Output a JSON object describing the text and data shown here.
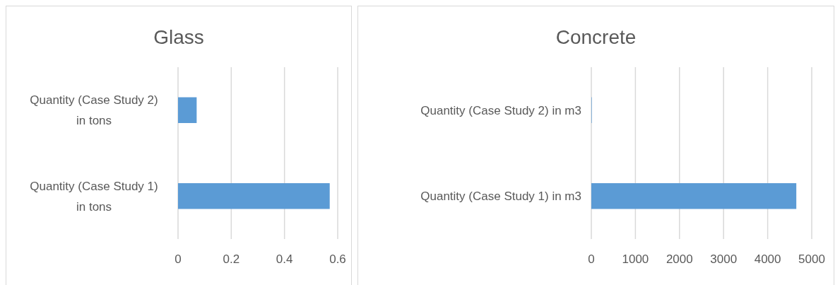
{
  "chart_data": [
    {
      "type": "bar",
      "orientation": "horizontal",
      "title": "Glass",
      "categories": [
        "Quantity (Case Study 2) in tons",
        "Quantity (Case Study 1) in tons"
      ],
      "values": [
        0.07,
        0.57
      ],
      "color": "#5b9bd5",
      "xlim": [
        0,
        0.6
      ],
      "xticks": [
        0,
        0.2,
        0.4,
        0.6
      ],
      "grid": "x"
    },
    {
      "type": "bar",
      "orientation": "horizontal",
      "title": "Concrete",
      "categories": [
        "Quantity (Case Study 2) in m3",
        "Quantity (Case Study 1) in m3"
      ],
      "values": [
        10,
        4650
      ],
      "color": "#5b9bd5",
      "xlim": [
        0,
        5000
      ],
      "xticks": [
        0,
        1000,
        2000,
        3000,
        4000,
        5000
      ],
      "grid": "x"
    }
  ]
}
